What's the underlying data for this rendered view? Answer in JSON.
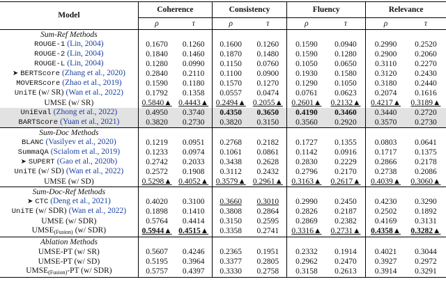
{
  "table": {
    "header": {
      "model": "Model",
      "metrics": [
        "Coherence",
        "Consistency",
        "Fluency",
        "Relevance"
      ],
      "sub": [
        "ρ",
        "τ"
      ]
    },
    "sections": [
      {
        "title": "Sum-Ref Methods",
        "rows": [
          {
            "name": "ROUGE-1",
            "mono": true,
            "cite": "(Lin, 2004)",
            "cells": [
              "0.1670",
              "0.1260",
              "0.1600",
              "0.1260",
              "0.1590",
              "0.0940",
              "0.2990",
              "0.2520"
            ]
          },
          {
            "name": "ROUGE-2",
            "mono": true,
            "cite": "(Lin, 2004)",
            "cells": [
              "0.1840",
              "0.1460",
              "0.1870",
              "0.1480",
              "0.1590",
              "0.1280",
              "0.2900",
              "0.2060"
            ]
          },
          {
            "name": "ROUGE-L",
            "mono": true,
            "cite": "(Lin, 2004)",
            "cells": [
              "0.1280",
              "0.0990",
              "0.1150",
              "0.0760",
              "0.1050",
              "0.0650",
              "0.3110",
              "0.2270"
            ]
          },
          {
            "name": "BERTScore",
            "mono": true,
            "marker": true,
            "cite": "(Zhang et al., 2020)",
            "cells": [
              "0.2840",
              "0.2110",
              "0.1100",
              "0.0900",
              "0.1930",
              "0.1580",
              "0.3120",
              "0.2430"
            ]
          },
          {
            "name": "MOVERScore",
            "mono": true,
            "cite": "(Zhao et al., 2019)",
            "cells": [
              "0.1590",
              "0.1180",
              "0.1570",
              "0.1270",
              "0.1290",
              "0.1050",
              "0.3180",
              "0.2440"
            ]
          },
          {
            "name": "UniTE",
            "mono": true,
            "suffix": "(w/ SR)",
            "cite": "(Wan et al., 2022)",
            "cells": [
              "0.1792",
              "0.1358",
              "0.0557",
              "0.0474",
              "0.0761",
              "0.0623",
              "0.2074",
              "0.1616"
            ]
          },
          {
            "name": "UMSE (w/ SR)",
            "cells": [
              "0.5840▲",
              "0.4443▲",
              "0.2494▲",
              "0.2055▲",
              "0.2601▲",
              "0.2132▲",
              "0.4217▲",
              "0.3189▲"
            ],
            "underline": [
              0,
              1,
              2,
              3,
              4,
              5,
              6,
              7
            ]
          },
          {
            "name": "UniEval",
            "mono": true,
            "shaded": true,
            "cite": "(Zhong et al., 2022)",
            "cells": [
              "0.4950",
              "0.3740",
              "0.4350",
              "0.3650",
              "0.4190",
              "0.3460",
              "0.3440",
              "0.2720"
            ],
            "bold": [
              2,
              3,
              4,
              5
            ]
          },
          {
            "name": "BARTScore",
            "mono": true,
            "shaded": true,
            "cite": "(Yuan et al., 2021)",
            "cells": [
              "0.3820",
              "0.2730",
              "0.3820",
              "0.3150",
              "0.3560",
              "0.2920",
              "0.3570",
              "0.2730"
            ]
          }
        ]
      },
      {
        "title": "Sum-Doc Methods",
        "rows": [
          {
            "name": "BLANC",
            "mono": true,
            "cite": "(Vasilyev et al., 2020)",
            "cells": [
              "0.1219",
              "0.0951",
              "0.2768",
              "0.2182",
              "0.1727",
              "0.1355",
              "0.0803",
              "0.0641"
            ]
          },
          {
            "name": "SummaQA",
            "mono": true,
            "cite": "(Scialom et al., 2019)",
            "cells": [
              "0.1233",
              "0.0974",
              "0.1061",
              "0.0861",
              "0.1142",
              "0.0916",
              "0.1717",
              "0.1375"
            ]
          },
          {
            "name": "SUPERT",
            "mono": true,
            "marker": true,
            "cite": "(Gao et al., 2020b)",
            "cells": [
              "0.2742",
              "0.2033",
              "0.3438",
              "0.2628",
              "0.2830",
              "0.2229",
              "0.2866",
              "0.2178"
            ]
          },
          {
            "name": "UniTE",
            "mono": true,
            "suffix": "(w/ SD)",
            "cite": "(Wan et al., 2022)",
            "cells": [
              "0.2572",
              "0.1908",
              "0.3112",
              "0.2432",
              "0.2796",
              "0.2170",
              "0.2738",
              "0.2086"
            ]
          },
          {
            "name": "UMSE (w/ SD)",
            "cells": [
              "0.5298▲",
              "0.4052▲",
              "0.3579▲",
              "0.2961▲",
              "0.3163▲",
              "0.2617▲",
              "0.4039▲",
              "0.3060▲"
            ],
            "underline": [
              0,
              1,
              2,
              3,
              4,
              5,
              6,
              7
            ]
          }
        ]
      },
      {
        "title": "Sum-Doc-Ref Methods",
        "rows": [
          {
            "name": "CTC",
            "mono": true,
            "marker": true,
            "cite": "(Deng et al., 2021)",
            "cells": [
              "0.4020",
              "0.3100",
              "0.3660",
              "0.3010",
              "0.2990",
              "0.2450",
              "0.4230",
              "0.3290"
            ],
            "underline": [
              2,
              3
            ]
          },
          {
            "name": "UniTE",
            "mono": true,
            "suffix": "(w/ SDR)",
            "cite": "(Wan et al., 2022)",
            "cells": [
              "0.1898",
              "0.1410",
              "0.3808",
              "0.2864",
              "0.2826",
              "0.2187",
              "0.2502",
              "0.1892"
            ]
          },
          {
            "name": "UMSE (w/ SDR)",
            "cells": [
              "0.5764",
              "0.4414",
              "0.3150",
              "0.2595",
              "0.2869",
              "0.2382",
              "0.4169",
              "0.3131"
            ]
          },
          {
            "name": "UMSE",
            "sub": "(Fusion)",
            "suffix": "(w/ SDR)",
            "cells": [
              "0.5944▲",
              "0.4515▲",
              "0.3358",
              "0.2741",
              "0.3316▲",
              "0.2731▲",
              "0.4358▲",
              "0.3282▲"
            ],
            "bold": [
              0,
              1,
              6,
              7
            ],
            "underline": [
              0,
              1,
              4,
              5,
              6,
              7
            ]
          }
        ]
      },
      {
        "title": "Ablation Methods",
        "rows": [
          {
            "name": "UMSE-PT (w/ SR)",
            "cells": [
              "0.5607",
              "0.4246",
              "0.2365",
              "0.1951",
              "0.2332",
              "0.1914",
              "0.4021",
              "0.3044"
            ]
          },
          {
            "name": "UMSE-PT (w/ SD)",
            "cells": [
              "0.5195",
              "0.3964",
              "0.3377",
              "0.2805",
              "0.2962",
              "0.2470",
              "0.3927",
              "0.2972"
            ]
          },
          {
            "name": "UMSE",
            "sub": "(Fusion)",
            "suffix": "-PT (w/ SDR)",
            "tight": true,
            "cells": [
              "0.5757",
              "0.4397",
              "0.3330",
              "0.2758",
              "0.3158",
              "0.2613",
              "0.3914",
              "0.3291"
            ]
          }
        ]
      }
    ]
  }
}
